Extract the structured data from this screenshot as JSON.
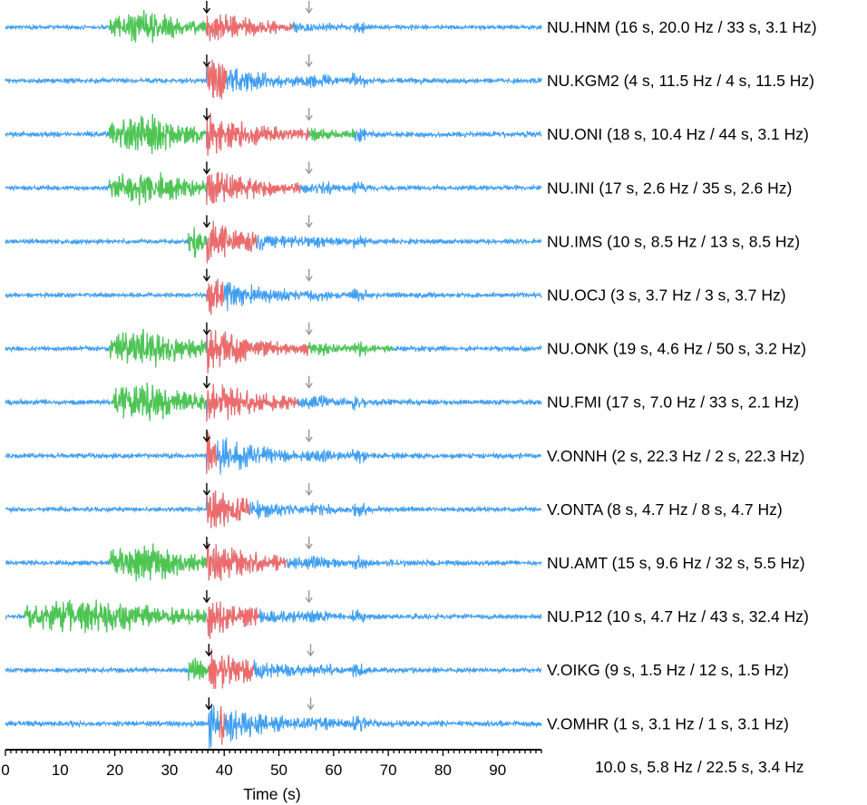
{
  "chart_data": {
    "type": "line",
    "title": "",
    "xlabel": "Time (s)",
    "ylabel": "",
    "xlim": [
      0,
      98
    ],
    "x_ticks": [
      0,
      10,
      20,
      30,
      40,
      50,
      60,
      70,
      80,
      90
    ],
    "x_tick_labels": [
      "0",
      "10",
      "20",
      "30",
      "40",
      "50",
      "60",
      "70",
      "80",
      "90"
    ],
    "colors": {
      "background_trace": "#3d9df0",
      "noise_window": "#4ec64e",
      "signal_window": "#ef6a68",
      "p_arrival_marker": "#000000",
      "s_arrival_marker": "#999999",
      "axis": "#000000"
    },
    "summary": "10.0 s, 5.8 Hz / 22.5 s, 3.4 Hz",
    "series": [
      {
        "name": "NU.HNM (16 s, 20.0 Hz / 33 s, 3.1 Hz)",
        "p_arrival": 36.8,
        "s_arrival": 55.5,
        "noise_window": [
          19,
          36.8
        ],
        "signal_window": [
          36.8,
          52.5
        ],
        "amplitude": 0.45
      },
      {
        "name": "NU.KGM2 (4 s, 11.5 Hz / 4 s, 11.5 Hz)",
        "p_arrival": 36.8,
        "s_arrival": 55.5,
        "noise_window": null,
        "signal_window": [
          36.8,
          40.5
        ],
        "amplitude": 0.55
      },
      {
        "name": "NU.ONI (18 s, 10.4 Hz / 44 s, 3.1 Hz)",
        "p_arrival": 36.8,
        "s_arrival": 55.5,
        "noise_window": [
          19,
          36.8
        ],
        "signal_window": [
          36.8,
          55.5
        ],
        "extra_noise_window": [
          55.5,
          64
        ],
        "amplitude": 0.55
      },
      {
        "name": "NU.INI (17 s, 2.6 Hz / 35 s, 2.6 Hz)",
        "p_arrival": 36.8,
        "s_arrival": 55.5,
        "noise_window": [
          19,
          36.8
        ],
        "signal_window": [
          36.8,
          54
        ],
        "amplitude": 0.5
      },
      {
        "name": "NU.IMS (10 s, 8.5 Hz / 13 s, 8.5 Hz)",
        "p_arrival": 36.8,
        "s_arrival": 55.5,
        "noise_window": [
          33.5,
          36.8
        ],
        "signal_window": [
          36.8,
          46
        ],
        "amplitude": 0.5
      },
      {
        "name": "NU.OCJ (3 s, 3.7 Hz / 3 s, 3.7 Hz)",
        "p_arrival": 36.8,
        "s_arrival": 55.5,
        "noise_window": null,
        "signal_window": [
          36.8,
          40
        ],
        "amplitude": 0.5
      },
      {
        "name": "NU.ONK (19 s, 4.6 Hz / 50 s, 3.2 Hz)",
        "p_arrival": 36.8,
        "s_arrival": 55.5,
        "noise_window": [
          19,
          36.8
        ],
        "signal_window": [
          36.8,
          55.5
        ],
        "extra_noise_window": [
          55.5,
          71
        ],
        "amplitude": 0.55
      },
      {
        "name": "NU.FMI (17 s, 7.0 Hz / 33 s, 2.1 Hz)",
        "p_arrival": 36.8,
        "s_arrival": 55.5,
        "noise_window": [
          19.5,
          36.8
        ],
        "signal_window": [
          36.8,
          53.5
        ],
        "amplitude": 0.55
      },
      {
        "name": "V.ONNH (2 s, 22.3 Hz / 2 s, 22.3 Hz)",
        "p_arrival": 36.8,
        "s_arrival": 55.5,
        "noise_window": null,
        "signal_window": [
          36.8,
          38.8
        ],
        "amplitude": 0.55
      },
      {
        "name": "V.ONTA (8 s, 4.7 Hz / 8 s, 4.7 Hz)",
        "p_arrival": 36.8,
        "s_arrival": 55.5,
        "noise_window": null,
        "signal_window": [
          36.8,
          44.8
        ],
        "amplitude": 0.5
      },
      {
        "name": "NU.AMT (15 s, 9.6 Hz / 32 s, 5.5 Hz)",
        "p_arrival": 36.8,
        "s_arrival": 55.5,
        "noise_window": [
          19,
          36.8
        ],
        "signal_window": [
          36.8,
          51.5
        ],
        "amplitude": 0.55
      },
      {
        "name": "NU.P12 (10 s, 4.7 Hz / 43 s, 32.4 Hz)",
        "p_arrival": 36.8,
        "s_arrival": 55.5,
        "noise_window": [
          3.5,
          36.8
        ],
        "signal_window": [
          36.8,
          46.5
        ],
        "amplitude": 0.5
      },
      {
        "name": "V.OIKG (9 s, 1.5 Hz / 12 s, 1.5 Hz)",
        "p_arrival": 37.2,
        "s_arrival": 55.8,
        "noise_window": [
          33.5,
          37.2
        ],
        "signal_window": [
          37.2,
          45.5
        ],
        "amplitude": 0.5
      },
      {
        "name": "V.OMHR (1 s, 3.1 Hz / 1 s, 3.1 Hz)",
        "p_arrival": 37.2,
        "s_arrival": 55.8,
        "noise_window": null,
        "signal_window": [
          39.2,
          40.2
        ],
        "amplitude": 0.6
      }
    ]
  }
}
